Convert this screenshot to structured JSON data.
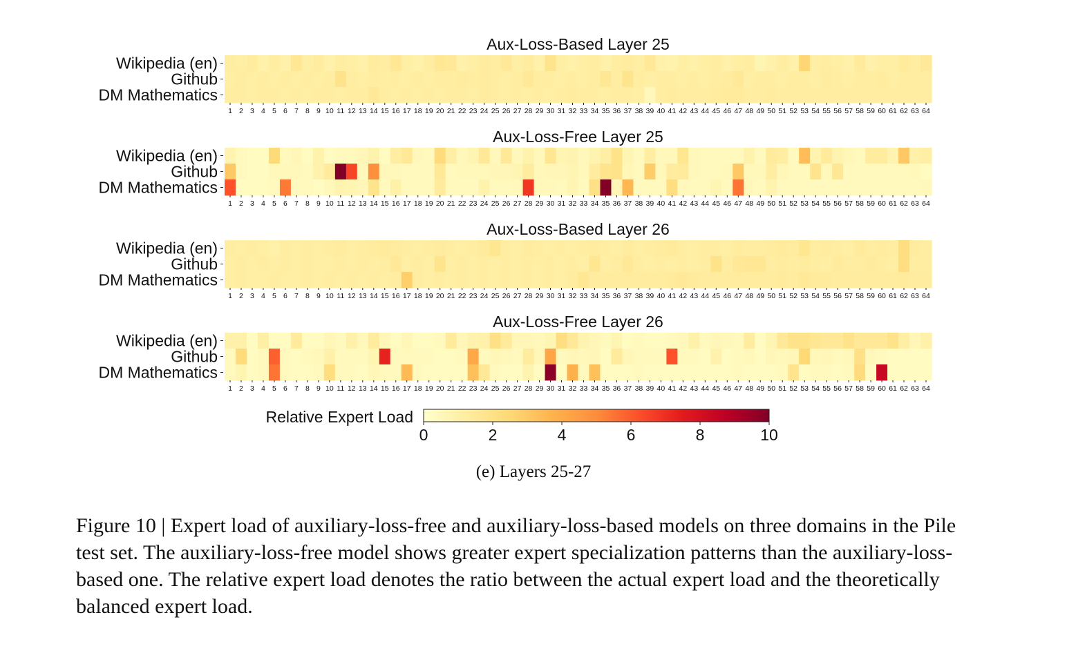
{
  "chart_data": {
    "type": "heatmap",
    "rows": [
      "Wikipedia (en)",
      "Github",
      "DM Mathematics"
    ],
    "experts": [
      "1",
      "2",
      "3",
      "4",
      "5",
      "6",
      "7",
      "8",
      "9",
      "10",
      "11",
      "12",
      "13",
      "14",
      "15",
      "16",
      "17",
      "18",
      "19",
      "20",
      "21",
      "22",
      "23",
      "24",
      "25",
      "26",
      "27",
      "28",
      "29",
      "30",
      "31",
      "32",
      "33",
      "34",
      "35",
      "36",
      "37",
      "38",
      "39",
      "40",
      "41",
      "42",
      "43",
      "44",
      "45",
      "46",
      "47",
      "48",
      "49",
      "50",
      "51",
      "52",
      "53",
      "54",
      "55",
      "56",
      "57",
      "58",
      "59",
      "60",
      "61",
      "62",
      "63",
      "64"
    ],
    "colorbar": {
      "label": "Relative Expert Load",
      "range": [
        0,
        10
      ],
      "ticks": [
        "0",
        "2",
        "4",
        "6",
        "8",
        "10"
      ],
      "colormap": "YlOrRd"
    },
    "panels": [
      {
        "title": "Aux-Loss-Based Layer 25",
        "values": [
          [
            1.2,
            1.1,
            1.3,
            1.0,
            1.2,
            1.0,
            1.6,
            1.1,
            1.3,
            1.0,
            1.2,
            1.1,
            1.0,
            1.3,
            1.2,
            1.6,
            1.1,
            1.0,
            1.2,
            1.6,
            1.5,
            1.0,
            1.1,
            1.3,
            1.2,
            1.5,
            1.1,
            1.3,
            1.0,
            1.8,
            1.1,
            1.0,
            1.1,
            1.2,
            1.0,
            1.2,
            1.3,
            1.1,
            1.5,
            1.0,
            0.9,
            1.1,
            1.0,
            1.1,
            1.2,
            1.0,
            1.1,
            1.2,
            0.7,
            1.0,
            1.2,
            1.0,
            2.6,
            1.1,
            1.2,
            1.1,
            1.0,
            1.4,
            1.0,
            1.1,
            1.1,
            1.4,
            1.2,
            1.5
          ],
          [
            1.1,
            1.2,
            1.1,
            1.2,
            1.1,
            1.2,
            1.1,
            1.2,
            1.1,
            1.2,
            1.9,
            1.2,
            1.1,
            1.2,
            1.1,
            1.2,
            1.1,
            1.2,
            1.1,
            1.2,
            1.2,
            1.3,
            1.2,
            1.3,
            1.2,
            1.1,
            1.2,
            1.5,
            1.2,
            1.2,
            1.1,
            1.2,
            1.1,
            1.2,
            1.6,
            1.2,
            1.8,
            1.2,
            1.1,
            1.2,
            1.2,
            1.1,
            1.2,
            1.1,
            1.2,
            1.3,
            1.5,
            1.1,
            1.2,
            1.2,
            1.1,
            1.2,
            1.2,
            1.1,
            1.3,
            1.2,
            1.1,
            1.2,
            1.2,
            1.3,
            1.1,
            1.2,
            1.2,
            1.2
          ],
          [
            1.2,
            1.2,
            1.1,
            1.2,
            1.2,
            1.1,
            1.2,
            1.1,
            1.2,
            1.2,
            1.1,
            1.2,
            1.2,
            1.5,
            1.2,
            1.1,
            1.2,
            1.1,
            1.2,
            1.1,
            1.2,
            1.2,
            1.1,
            1.3,
            1.2,
            1.1,
            1.2,
            1.1,
            1.2,
            1.1,
            1.2,
            1.3,
            1.2,
            1.2,
            1.1,
            1.2,
            1.2,
            1.1,
            0.5,
            1.2,
            1.3,
            1.2,
            1.2,
            1.2,
            1.3,
            1.4,
            1.4,
            1.2,
            1.2,
            1.3,
            1.2,
            1.2,
            1.2,
            1.2,
            1.2,
            1.2,
            1.2,
            1.2,
            1.2,
            1.2,
            1.2,
            1.2,
            1.2,
            1.2
          ]
        ]
      },
      {
        "title": "Aux-Loss-Free Layer 25",
        "values": [
          [
            0.8,
            0.4,
            0.3,
            0.3,
            2.4,
            0.4,
            0.6,
            0.3,
            0.9,
            0.3,
            0.4,
            0.4,
            0.6,
            0.9,
            0.3,
            1.2,
            1.5,
            0.5,
            0.4,
            2.3,
            1.1,
            0.5,
            0.7,
            1.5,
            0.5,
            1.5,
            0.5,
            0.9,
            0.5,
            1.7,
            0.7,
            0.8,
            0.5,
            0.8,
            1.1,
            1.9,
            0.7,
            0.4,
            1.2,
            0.5,
            0.5,
            1.7,
            0.5,
            0.4,
            0.4,
            0.4,
            0.4,
            0.9,
            0.4,
            1.4,
            1.2,
            0.4,
            3.4,
            0.8,
            1.4,
            0.8,
            0.6,
            0.4,
            1.3,
            1.3,
            0.8,
            3.0,
            1.0,
            1.1
          ],
          [
            3.0,
            0.4,
            0.3,
            0.3,
            0.5,
            0.5,
            0.5,
            0.4,
            0.9,
            1.4,
            10.0,
            6.5,
            0.5,
            4.9,
            0.5,
            0.5,
            0.4,
            0.4,
            0.4,
            1.5,
            0.4,
            0.5,
            0.5,
            0.5,
            0.6,
            0.6,
            0.7,
            1.3,
            0.5,
            0.6,
            0.6,
            0.7,
            0.5,
            1.3,
            1.8,
            1.9,
            0.6,
            0.4,
            2.9,
            0.5,
            1.3,
            1.4,
            0.5,
            0.4,
            0.4,
            0.5,
            3.0,
            0.5,
            0.5,
            1.2,
            0.6,
            0.4,
            0.4,
            1.8,
            0.5,
            1.6,
            0.4,
            0.4,
            0.4,
            0.4,
            0.4,
            0.4,
            0.5,
            0.3
          ],
          [
            6.2,
            0.3,
            0.3,
            0.3,
            0.4,
            5.4,
            0.4,
            0.4,
            0.3,
            0.5,
            0.8,
            0.7,
            0.6,
            1.8,
            0.4,
            1.0,
            0.4,
            0.4,
            0.4,
            1.4,
            0.4,
            0.4,
            0.4,
            0.9,
            0.4,
            0.4,
            0.5,
            6.8,
            0.5,
            0.5,
            0.4,
            0.7,
            0.4,
            2.0,
            10.0,
            0.6,
            3.6,
            0.4,
            0.4,
            0.4,
            2.2,
            0.5,
            0.4,
            0.4,
            0.7,
            0.4,
            5.5,
            0.5,
            0.4,
            0.8,
            0.4,
            0.4,
            0.4,
            0.4,
            0.4,
            0.4,
            0.4,
            0.4,
            0.4,
            0.4,
            0.4,
            0.4,
            0.4,
            0.5
          ]
        ]
      },
      {
        "title": "Aux-Loss-Based Layer 26",
        "values": [
          [
            1.2,
            1.1,
            1.2,
            1.1,
            1.0,
            1.2,
            1.1,
            1.2,
            1.1,
            1.2,
            1.3,
            1.1,
            1.2,
            1.3,
            1.4,
            1.3,
            1.2,
            1.1,
            1.2,
            1.3,
            1.2,
            1.1,
            1.2,
            1.4,
            1.7,
            1.2,
            1.1,
            1.3,
            1.2,
            1.1,
            1.2,
            1.1,
            1.2,
            1.3,
            1.2,
            1.1,
            1.3,
            1.1,
            1.2,
            1.3,
            1.4,
            1.2,
            1.1,
            1.2,
            1.2,
            1.1,
            1.3,
            1.2,
            1.2,
            1.3,
            1.4,
            1.3,
            1.7,
            1.2,
            1.3,
            1.2,
            1.1,
            1.4,
            1.2,
            1.3,
            1.2,
            2.2,
            1.3,
            1.2
          ],
          [
            1.1,
            1.2,
            1.1,
            1.2,
            1.1,
            1.2,
            1.1,
            1.2,
            1.1,
            1.1,
            1.2,
            1.1,
            1.2,
            1.1,
            1.2,
            1.5,
            1.1,
            1.2,
            1.1,
            1.8,
            1.1,
            1.2,
            1.1,
            1.2,
            1.1,
            1.2,
            1.1,
            1.2,
            1.1,
            1.2,
            1.1,
            1.2,
            1.1,
            1.7,
            1.1,
            1.2,
            1.5,
            1.2,
            1.1,
            1.2,
            1.1,
            1.2,
            1.1,
            1.2,
            1.9,
            1.2,
            1.5,
            1.6,
            1.6,
            1.2,
            1.3,
            1.2,
            1.3,
            1.2,
            1.1,
            1.4,
            1.2,
            1.2,
            1.4,
            1.2,
            1.1,
            2.2,
            1.2,
            1.2
          ],
          [
            1.1,
            1.2,
            1.1,
            1.1,
            1.2,
            1.1,
            1.1,
            1.2,
            1.1,
            1.2,
            1.1,
            1.2,
            1.1,
            1.2,
            1.1,
            1.2,
            2.8,
            1.2,
            1.1,
            1.2,
            1.1,
            1.2,
            1.1,
            1.2,
            1.1,
            1.2,
            1.1,
            1.2,
            1.1,
            1.2,
            1.1,
            1.3,
            1.6,
            1.3,
            1.3,
            1.3,
            1.3,
            1.3,
            1.3,
            1.3,
            1.4,
            1.5,
            1.4,
            1.3,
            1.3,
            1.3,
            1.3,
            1.3,
            1.3,
            1.3,
            1.4,
            1.3,
            1.5,
            1.4,
            1.4,
            1.3,
            1.3,
            1.3,
            1.3,
            1.3,
            1.3,
            1.4,
            1.3,
            1.3
          ]
        ]
      },
      {
        "title": "Aux-Loss-Free Layer 26",
        "values": [
          [
            1.0,
            1.0,
            0.3,
            1.1,
            0.3,
            0.3,
            1.4,
            0.3,
            0.3,
            0.6,
            0.4,
            1.0,
            0.5,
            1.3,
            0.6,
            0.3,
            0.6,
            0.3,
            0.3,
            0.4,
            1.4,
            0.6,
            0.9,
            1.0,
            2.0,
            1.4,
            0.6,
            0.6,
            0.5,
            0.7,
            2.2,
            1.5,
            0.8,
            0.6,
            0.4,
            0.7,
            0.3,
            0.4,
            0.3,
            0.3,
            0.4,
            0.5,
            1.0,
            0.4,
            0.6,
            0.5,
            0.4,
            1.3,
            0.3,
            0.7,
            1.5,
            1.9,
            1.9,
            1.7,
            1.5,
            1.5,
            1.9,
            1.5,
            1.5,
            1.5,
            1.9,
            1.1,
            0.6,
            1.0
          ],
          [
            0.4,
            2.3,
            0.3,
            0.4,
            5.9,
            0.4,
            0.3,
            0.4,
            0.5,
            1.0,
            0.4,
            0.4,
            0.4,
            0.7,
            7.3,
            0.4,
            0.4,
            0.4,
            0.4,
            0.3,
            0.3,
            0.4,
            4.1,
            0.4,
            0.6,
            0.5,
            0.4,
            1.3,
            0.6,
            4.2,
            0.4,
            0.6,
            0.5,
            0.6,
            0.3,
            1.4,
            0.6,
            0.4,
            0.4,
            0.4,
            6.2,
            0.4,
            0.4,
            0.3,
            0.9,
            0.3,
            0.4,
            0.5,
            0.3,
            0.6,
            0.5,
            0.6,
            2.5,
            0.5,
            0.6,
            0.4,
            0.5,
            2.0,
            0.5,
            0.4,
            0.3,
            0.3,
            0.3,
            0.3
          ],
          [
            0.4,
            0.7,
            0.3,
            0.4,
            5.5,
            0.4,
            0.3,
            0.3,
            0.4,
            2.2,
            0.4,
            0.4,
            0.3,
            0.6,
            0.4,
            0.4,
            3.5,
            0.4,
            0.3,
            0.3,
            0.3,
            0.3,
            3.3,
            1.5,
            0.4,
            0.3,
            0.3,
            0.8,
            0.3,
            9.8,
            0.3,
            3.8,
            0.4,
            3.3,
            0.3,
            0.3,
            0.3,
            0.4,
            0.3,
            0.3,
            0.3,
            0.3,
            0.3,
            0.3,
            0.3,
            0.3,
            0.4,
            0.3,
            0.3,
            0.3,
            0.4,
            1.8,
            0.3,
            0.4,
            0.4,
            0.3,
            0.4,
            2.3,
            0.3,
            8.4,
            0.3,
            0.3,
            0.3,
            0.3
          ]
        ]
      }
    ]
  },
  "figure": {
    "subcaption": "(e)  Layers 25-27",
    "caption": "Figure 10 | Expert load of auxiliary-loss-free and auxiliary-loss-based models on three domains in the Pile test set. The auxiliary-loss-free model shows greater expert specialization patterns than the auxiliary-loss-based one. The relative expert load denotes the ratio between the actual expert load and the theoretically balanced expert load."
  }
}
